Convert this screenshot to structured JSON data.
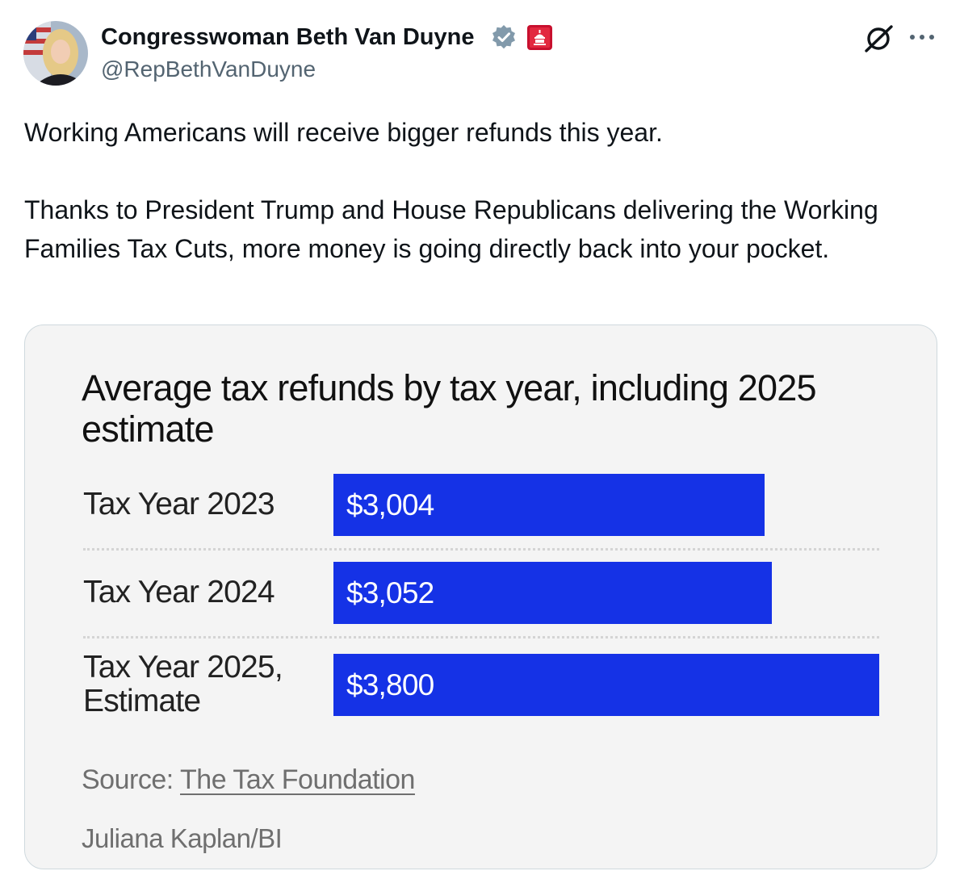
{
  "author": {
    "name": "Congresswoman Beth Van Duyne",
    "handle": "@RepBethVanDuyne"
  },
  "icons": [
    "avatar",
    "verified-badge-icon",
    "house-affiliation-icon",
    "grok-icon",
    "more-icon"
  ],
  "colors": {
    "bar": "#1532e6",
    "verified_badge": "#829aab",
    "affiliation_badge": "#c8102e",
    "card_background": "#f4f4f4"
  },
  "tweet": {
    "line1": "Working Americans will receive bigger refunds this year.",
    "line2": "Thanks to President Trump and House Republicans delivering the Working Families Tax Cuts, more money is going directly back into your pocket."
  },
  "card": {
    "source_prefix": "Source: ",
    "source_link": "The Tax Foundation",
    "credit": "Juliana Kaplan/BI"
  },
  "chart_data": {
    "type": "bar",
    "orientation": "horizontal",
    "title": "Average tax refunds by tax year, including 2025 estimate",
    "categories": [
      "Tax Year 2023",
      "Tax Year 2024",
      "Tax Year 2025, Estimate"
    ],
    "values": [
      3004,
      3052,
      3800
    ],
    "value_labels": [
      "$3,004",
      "$3,052",
      "$3,800"
    ],
    "xlim": [
      0,
      3800
    ],
    "grid": false,
    "legend": "none"
  }
}
